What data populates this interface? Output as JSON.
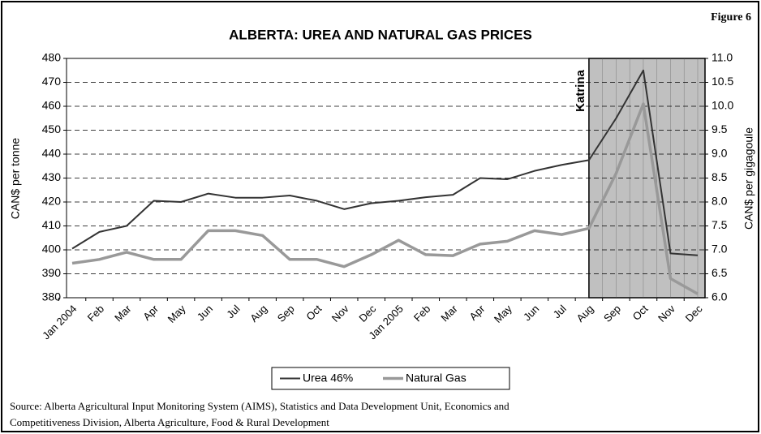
{
  "chart_data": {
    "type": "line",
    "title": "ALBERTA: UREA AND NATURAL GAS PRICES",
    "figure_label": "Figure 6",
    "y_label": "CAN$ per tonne",
    "y2_label": "CAN$ per gigagoule",
    "annotations": [
      "Katrina"
    ],
    "source": [
      "Source: Alberta Agricultural Input Monitoring System (AIMS), Statistics and Data Development Unit, Economics and",
      "Competitiveness Division, Alberta Agriculture, Food & Rural Development"
    ],
    "categories": [
      "Jan 2004",
      "Feb",
      "Mar",
      "Apr",
      "May",
      "Jun",
      "Jul",
      "Aug",
      "Sep",
      "Oct",
      "Nov",
      "Dec",
      "Jan 2005",
      "Feb",
      "Mar",
      "Apr",
      "May",
      "Jun",
      "Jul",
      "Aug",
      "Sep",
      "Oct",
      "Nov",
      "Dec"
    ],
    "series": [
      {
        "name": "Urea 46%",
        "color": "#333333",
        "axis": "y",
        "values": [
          400.5,
          407.5,
          410,
          420.5,
          420,
          423.5,
          421.8,
          421.8,
          422.7,
          420.5,
          417,
          419.5,
          420.5,
          422,
          423,
          430,
          429.5,
          433,
          435.5,
          437.5,
          455,
          475,
          398.5,
          397.7
        ]
      },
      {
        "name": "Natural Gas",
        "color": "#999999",
        "axis": "y2",
        "values": [
          6.72,
          6.8,
          6.95,
          6.8,
          6.8,
          7.4,
          7.4,
          7.3,
          6.8,
          6.8,
          6.65,
          6.9,
          7.2,
          6.9,
          6.88,
          7.12,
          7.18,
          7.4,
          7.32,
          7.45,
          8.6,
          10.05,
          6.4,
          6.08
        ]
      }
    ],
    "ylim": [
      380,
      480
    ],
    "yticks": [
      380,
      390,
      400,
      410,
      420,
      430,
      440,
      450,
      460,
      470,
      480
    ],
    "y2lim": [
      6,
      11
    ],
    "y2ticks": [
      {
        "value": 6,
        "label": "6.0"
      },
      6.5,
      {
        "value": 7,
        "label": "7.0"
      },
      7.5,
      {
        "value": 8,
        "label": "8.0"
      },
      8.5,
      {
        "value": 9,
        "label": "9.0"
      },
      9.5,
      {
        "value": 10,
        "label": "10.0"
      },
      10.5,
      {
        "value": 11,
        "label": "11.0"
      }
    ],
    "grid": true,
    "legend": "bottom"
  }
}
